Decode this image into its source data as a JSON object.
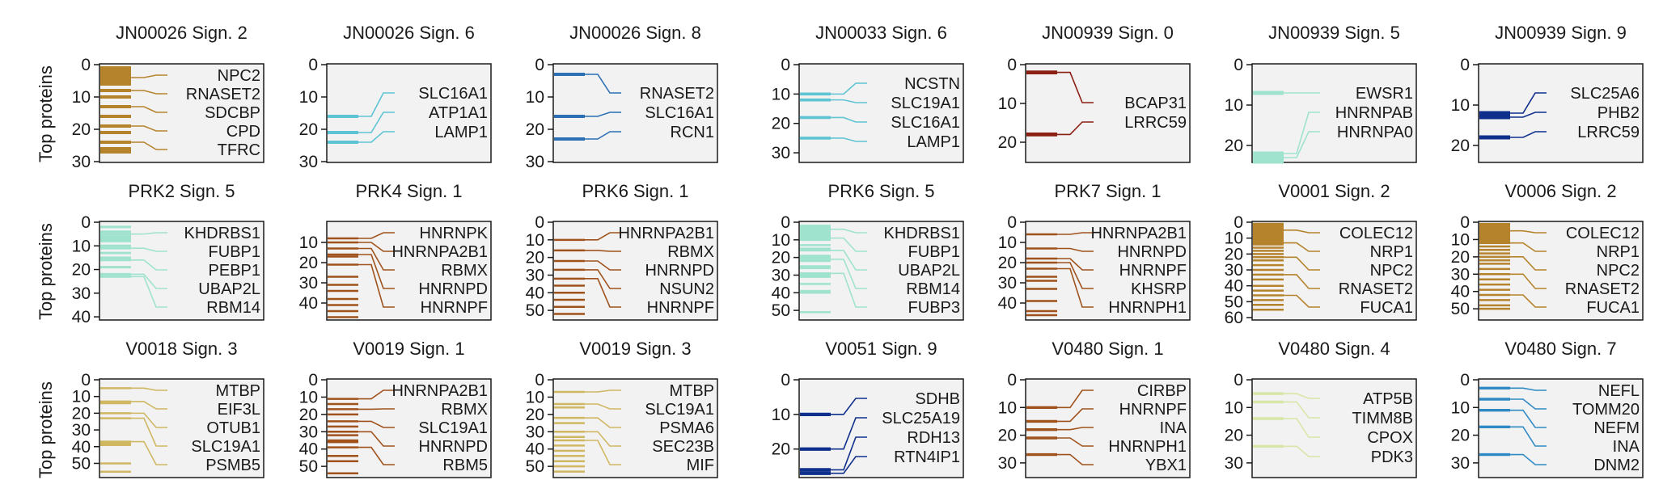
{
  "y_axis_label": "Top proteins",
  "chart_data": [
    {
      "type": "bar",
      "title": "JN00026 Sign. 2",
      "color": "#b5832c",
      "ylim": [
        30,
        0
      ],
      "yticks": [
        0,
        10,
        20,
        30
      ],
      "bars": [
        1,
        2,
        3,
        4,
        5,
        6,
        8,
        10,
        13,
        16,
        19,
        21,
        24,
        26,
        27
      ],
      "labels": [
        {
          "text": "NPC2",
          "rank": 4
        },
        {
          "text": "RNASET2",
          "rank": 8
        },
        {
          "text": "SDCBP",
          "rank": 13
        },
        {
          "text": "CPD",
          "rank": 19
        },
        {
          "text": "TFRC",
          "rank": 24
        }
      ]
    },
    {
      "type": "bar",
      "title": "JN00026 Sign. 6",
      "color": "#5ec4d4",
      "ylim": [
        30,
        0
      ],
      "yticks": [
        0,
        10,
        20,
        30
      ],
      "bars": [
        16,
        21,
        24
      ],
      "labels": [
        {
          "text": "SLC16A1",
          "rank": 16
        },
        {
          "text": "ATP1A1",
          "rank": 21
        },
        {
          "text": "LAMP1",
          "rank": 24
        }
      ]
    },
    {
      "type": "bar",
      "title": "JN00026 Sign. 8",
      "color": "#2b6fb5",
      "ylim": [
        30,
        0
      ],
      "yticks": [
        0,
        10,
        20,
        30
      ],
      "bars": [
        3,
        16,
        23
      ],
      "labels": [
        {
          "text": "RNASET2",
          "rank": 3
        },
        {
          "text": "SLC16A1",
          "rank": 16
        },
        {
          "text": "RCN1",
          "rank": 23
        }
      ]
    },
    {
      "type": "bar",
      "title": "JN00033 Sign. 6",
      "color": "#5ec4d4",
      "ylim": [
        33,
        0
      ],
      "yticks": [
        0,
        10,
        20,
        30
      ],
      "bars": [
        10,
        12,
        18,
        25
      ],
      "labels": [
        {
          "text": "NCSTN",
          "rank": 10
        },
        {
          "text": "SLC19A1",
          "rank": 12
        },
        {
          "text": "SLC16A1",
          "rank": 18
        },
        {
          "text": "LAMP1",
          "rank": 25
        }
      ]
    },
    {
      "type": "bar",
      "title": "JN00939 Sign. 0",
      "color": "#8b1f14",
      "ylim": [
        25,
        0
      ],
      "yticks": [
        0,
        10,
        20
      ],
      "bars": [
        2,
        18
      ],
      "labels": [
        {
          "text": "BCAP31",
          "rank": 2
        },
        {
          "text": "LRRC59",
          "rank": 18
        }
      ]
    },
    {
      "type": "bar",
      "title": "JN00939 Sign. 5",
      "color": "#9fe3cf",
      "ylim": [
        24,
        0
      ],
      "yticks": [
        0,
        10,
        20
      ],
      "bars": [
        7,
        22,
        23,
        24
      ],
      "labels": [
        {
          "text": "EWSR1",
          "rank": 7
        },
        {
          "text": "HNRNPAB",
          "rank": 22
        },
        {
          "text": "HNRNPA0",
          "rank": 23
        }
      ]
    },
    {
      "type": "bar",
      "title": "JN00939 Sign. 9",
      "color": "#0f2f8c",
      "ylim": [
        24,
        0
      ],
      "yticks": [
        0,
        10,
        20
      ],
      "bars": [
        12,
        13,
        18
      ],
      "labels": [
        {
          "text": "SLC25A6",
          "rank": 12
        },
        {
          "text": "PHB2",
          "rank": 13
        },
        {
          "text": "LRRC59",
          "rank": 18
        }
      ]
    },
    {
      "type": "bar",
      "title": "PRK2 Sign. 5",
      "color": "#9fe3cf",
      "ylim": [
        41,
        0
      ],
      "yticks": [
        0,
        10,
        20,
        30,
        40
      ],
      "bars": [
        2,
        4,
        5,
        6,
        7,
        8,
        10,
        11,
        13,
        15,
        16,
        19,
        22,
        23
      ],
      "labels": [
        {
          "text": "KHDRBS1",
          "rank": 5
        },
        {
          "text": "FUBP1",
          "rank": 11
        },
        {
          "text": "PEBP1",
          "rank": 16
        },
        {
          "text": "UBAP2L",
          "rank": 22
        },
        {
          "text": "RBM14",
          "rank": 23
        }
      ]
    },
    {
      "type": "bar",
      "title": "PRK4 Sign. 1",
      "color": "#a0521c",
      "ylim": [
        48,
        0
      ],
      "yticks": [
        10,
        20,
        30,
        40
      ],
      "bars": [
        8,
        10,
        13,
        16,
        17,
        21,
        27,
        31,
        34,
        38,
        41,
        44,
        47
      ],
      "labels": [
        {
          "text": "HNRNPK",
          "rank": 8
        },
        {
          "text": "HNRNPA2B1",
          "rank": 10
        },
        {
          "text": "RBMX",
          "rank": 13
        },
        {
          "text": "HNRNPD",
          "rank": 16
        },
        {
          "text": "HNRNPF",
          "rank": 21
        }
      ]
    },
    {
      "type": "bar",
      "title": "PRK6 Sign. 1",
      "color": "#a0521c",
      "ylim": [
        55,
        0
      ],
      "yticks": [
        0,
        10,
        20,
        30,
        40,
        50
      ],
      "bars": [
        10,
        16,
        22,
        27,
        32,
        36,
        40,
        44,
        48,
        52
      ],
      "labels": [
        {
          "text": "HNRNPA2B1",
          "rank": 10
        },
        {
          "text": "RBMX",
          "rank": 16
        },
        {
          "text": "HNRNPD",
          "rank": 22
        },
        {
          "text": "NSUN2",
          "rank": 27
        },
        {
          "text": "HNRNPF",
          "rank": 32
        }
      ]
    },
    {
      "type": "bar",
      "title": "PRK6 Sign. 5",
      "color": "#9fe3cf",
      "ylim": [
        55,
        0
      ],
      "yticks": [
        0,
        10,
        20,
        30,
        40,
        50
      ],
      "bars": [
        2,
        3,
        4,
        5,
        6,
        7,
        8,
        9,
        10,
        13,
        15,
        16,
        19,
        20,
        21,
        22,
        25,
        26,
        29,
        30,
        31,
        35,
        39,
        40,
        51
      ],
      "labels": [
        {
          "text": "KHDRBS1",
          "rank": 4
        },
        {
          "text": "FUBP1",
          "rank": 9
        },
        {
          "text": "UBAP2L",
          "rank": 16
        },
        {
          "text": "RBM14",
          "rank": 21
        },
        {
          "text": "FUBP3",
          "rank": 29
        }
      ]
    },
    {
      "type": "bar",
      "title": "PRK7 Sign. 1",
      "color": "#a0521c",
      "ylim": [
        48,
        0
      ],
      "yticks": [
        0,
        10,
        20,
        30,
        40
      ],
      "bars": [
        6,
        13,
        18,
        20,
        23,
        27,
        29,
        33,
        39,
        44,
        46
      ],
      "labels": [
        {
          "text": "HNRNPA2B1",
          "rank": 6
        },
        {
          "text": "HNRNPD",
          "rank": 13
        },
        {
          "text": "HNRNPF",
          "rank": 18
        },
        {
          "text": "KHSRP",
          "rank": 20
        },
        {
          "text": "HNRNPH1",
          "rank": 23
        }
      ]
    },
    {
      "type": "bar",
      "title": "V0001 Sign. 2",
      "color": "#b5832c",
      "ylim": [
        61,
        0
      ],
      "yticks": [
        0,
        10,
        20,
        30,
        40,
        50,
        60
      ],
      "bars": [
        1,
        2,
        3,
        4,
        5,
        6,
        7,
        8,
        9,
        10,
        11,
        12,
        13,
        14,
        16,
        18,
        20,
        22,
        24,
        27,
        30,
        33,
        36,
        40,
        43,
        46,
        49,
        52,
        55
      ],
      "labels": [
        {
          "text": "COLEC12",
          "rank": 5
        },
        {
          "text": "NRP1",
          "rank": 13
        },
        {
          "text": "NPC2",
          "rank": 22
        },
        {
          "text": "RNASET2",
          "rank": 33
        },
        {
          "text": "FUCA1",
          "rank": 46
        }
      ]
    },
    {
      "type": "bar",
      "title": "V0006 Sign. 2",
      "color": "#b5832c",
      "ylim": [
        56,
        0
      ],
      "yticks": [
        0,
        10,
        20,
        30,
        40,
        50
      ],
      "bars": [
        1,
        2,
        3,
        4,
        5,
        6,
        7,
        8,
        9,
        10,
        11,
        12,
        14,
        16,
        18,
        20,
        22,
        24,
        27,
        30,
        33,
        36,
        39,
        42,
        45,
        48,
        50
      ],
      "labels": [
        {
          "text": "COLEC12",
          "rank": 5
        },
        {
          "text": "NRP1",
          "rank": 12
        },
        {
          "text": "NPC2",
          "rank": 20
        },
        {
          "text": "RNASET2",
          "rank": 30
        },
        {
          "text": "FUCA1",
          "rank": 42
        }
      ]
    },
    {
      "type": "bar",
      "title": "V0018 Sign. 3",
      "color": "#d0b762",
      "ylim": [
        58,
        0
      ],
      "yticks": [
        0,
        10,
        20,
        30,
        40,
        50
      ],
      "bars": [
        5,
        13,
        14,
        20,
        23,
        37,
        38,
        39,
        50,
        55
      ],
      "labels": [
        {
          "text": "MTBP",
          "rank": 5
        },
        {
          "text": "EIF3L",
          "rank": 13
        },
        {
          "text": "OTUB1",
          "rank": 20
        },
        {
          "text": "SLC19A1",
          "rank": 23
        },
        {
          "text": "PSMB5",
          "rank": 37
        }
      ]
    },
    {
      "type": "bar",
      "title": "V0019 Sign. 1",
      "color": "#a0521c",
      "ylim": [
        56,
        0
      ],
      "yticks": [
        0,
        10,
        20,
        30,
        40,
        50
      ],
      "bars": [
        11,
        14,
        17,
        20,
        24,
        27,
        30,
        32,
        35,
        36,
        39,
        44,
        47,
        54
      ],
      "labels": [
        {
          "text": "HNRNPA2B1",
          "rank": 11
        },
        {
          "text": "RBMX",
          "rank": 17
        },
        {
          "text": "SLC19A1",
          "rank": 24
        },
        {
          "text": "HNRNPD",
          "rank": 30
        },
        {
          "text": "RBM5",
          "rank": 39
        }
      ]
    },
    {
      "type": "bar",
      "title": "V0019 Sign. 3",
      "color": "#d0b762",
      "ylim": [
        56,
        0
      ],
      "yticks": [
        0,
        10,
        20,
        30,
        40,
        50
      ],
      "bars": [
        7,
        14,
        16,
        22,
        25,
        30,
        33,
        35,
        38,
        41,
        44,
        47,
        50,
        53
      ],
      "labels": [
        {
          "text": "MTBP",
          "rank": 7
        },
        {
          "text": "SLC19A1",
          "rank": 14
        },
        {
          "text": "PSMA6",
          "rank": 22
        },
        {
          "text": "SEC23B",
          "rank": 30
        },
        {
          "text": "MIF",
          "rank": 35
        }
      ]
    },
    {
      "type": "bar",
      "title": "V0051 Sign. 9",
      "color": "#0f2f8c",
      "ylim": [
        28,
        0
      ],
      "yticks": [
        0,
        10,
        20
      ],
      "bars": [
        10,
        20,
        26,
        27
      ],
      "labels": [
        {
          "text": "SDHB",
          "rank": 10
        },
        {
          "text": "SLC25A19",
          "rank": 20
        },
        {
          "text": "RDH13",
          "rank": 26
        },
        {
          "text": "RTN4IP1",
          "rank": 27
        }
      ]
    },
    {
      "type": "bar",
      "title": "V0480 Sign. 1",
      "color": "#a0521c",
      "ylim": [
        35,
        0
      ],
      "yticks": [
        0,
        10,
        20,
        30
      ],
      "bars": [
        10,
        15,
        18,
        21,
        27
      ],
      "labels": [
        {
          "text": "CIRBP",
          "rank": 10
        },
        {
          "text": "HNRNPF",
          "rank": 15
        },
        {
          "text": "INA",
          "rank": 18
        },
        {
          "text": "HNRNPH1",
          "rank": 21
        },
        {
          "text": "YBX1",
          "rank": 27
        }
      ]
    },
    {
      "type": "bar",
      "title": "V0480 Sign. 4",
      "color": "#d8e6a8",
      "ylim": [
        35,
        0
      ],
      "yticks": [
        0,
        10,
        20,
        30
      ],
      "bars": [
        5,
        8,
        14,
        24
      ],
      "labels": [
        {
          "text": "ATP5B",
          "rank": 5
        },
        {
          "text": "TIMM8B",
          "rank": 8
        },
        {
          "text": "CPOX",
          "rank": 14
        },
        {
          "text": "PDK3",
          "rank": 24
        }
      ]
    },
    {
      "type": "bar",
      "title": "V0480 Sign. 7",
      "color": "#2f8ac4",
      "ylim": [
        35,
        0
      ],
      "yticks": [
        0,
        10,
        20,
        30
      ],
      "bars": [
        3,
        7,
        11,
        17,
        27
      ],
      "labels": [
        {
          "text": "NEFL",
          "rank": 3
        },
        {
          "text": "TOMM20",
          "rank": 7
        },
        {
          "text": "NEFM",
          "rank": 11
        },
        {
          "text": "INA",
          "rank": 17
        },
        {
          "text": "DNM2",
          "rank": 27
        }
      ]
    }
  ]
}
